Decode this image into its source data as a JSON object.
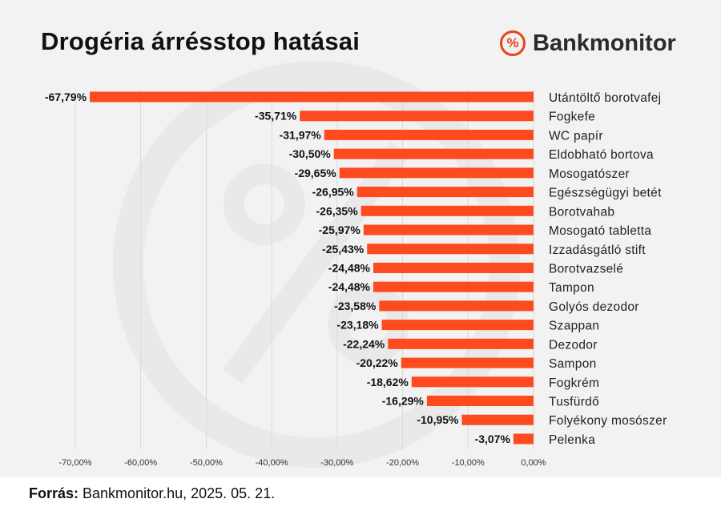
{
  "header": {
    "title": "Drogéria árrésstop hatásai",
    "brand_name": "Bankmonitor",
    "brand_symbol": "%"
  },
  "footer": {
    "source_label": "Forrás:",
    "source_text": "Bankmonitor.hu, 2025. 05. 21."
  },
  "colors": {
    "bar": "#fd4a1e",
    "accent": "#e8431b",
    "background": "#f2f2f2",
    "grid": "#d9d9d9"
  },
  "chart_data": {
    "type": "bar",
    "orientation": "horizontal",
    "title": "Drogéria árrésstop hatásai",
    "xlim": [
      -70,
      0
    ],
    "grid": true,
    "categories": [
      "Utántöltő borotvafej",
      "Fogkefe",
      "WC papír",
      "Eldobható bortova",
      "Mosogatószer",
      "Egészségügyi betét",
      "Borotvahab",
      "Mosogató tabletta",
      "Izzadásgátló stift",
      "Borotvazselé",
      "Tampon",
      "Golyós dezodor",
      "Szappan",
      "Dezodor",
      "Sampon",
      "Fogkrém",
      "Tusfürdő",
      "Folyékony mosószer",
      "Pelenka"
    ],
    "values": [
      -67.79,
      -35.71,
      -31.97,
      -30.5,
      -29.65,
      -26.95,
      -26.35,
      -25.97,
      -25.43,
      -24.48,
      -24.48,
      -23.58,
      -23.18,
      -22.24,
      -20.22,
      -18.62,
      -16.29,
      -10.95,
      -3.07
    ],
    "value_labels": [
      "-67,79%",
      "-35,71%",
      "-31,97%",
      "-30,50%",
      "-29,65%",
      "-26,95%",
      "-26,35%",
      "-25,97%",
      "-25,43%",
      "-24,48%",
      "-24,48%",
      "-23,58%",
      "-23,18%",
      "-22,24%",
      "-20,22%",
      "-18,62%",
      "-16,29%",
      "-10,95%",
      "-3,07%"
    ],
    "x_ticks": [
      {
        "value": -70,
        "label": "-70,00%"
      },
      {
        "value": -60,
        "label": "-60,00%"
      },
      {
        "value": -50,
        "label": "-50,00%"
      },
      {
        "value": -40,
        "label": "-40,00%"
      },
      {
        "value": -30,
        "label": "-30,00%"
      },
      {
        "value": -20,
        "label": "-20,00%"
      },
      {
        "value": -10,
        "label": "-10,00%"
      },
      {
        "value": 0,
        "label": "0,00%"
      }
    ]
  }
}
